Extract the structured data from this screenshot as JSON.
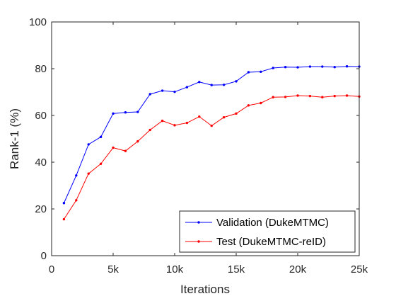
{
  "chart_data": {
    "type": "line",
    "title": "",
    "xlabel": "Iterations",
    "ylabel": "Rank-1 (%)",
    "xlim": [
      0,
      25000
    ],
    "ylim": [
      0,
      100
    ],
    "xticks": [
      0,
      5000,
      10000,
      15000,
      20000,
      25000
    ],
    "xtick_labels": [
      "0",
      "5k",
      "10k",
      "15k",
      "20k",
      "25k"
    ],
    "yticks": [
      0,
      20,
      40,
      60,
      80,
      100
    ],
    "ytick_labels": [
      "0",
      "20",
      "40",
      "60",
      "80",
      "100"
    ],
    "grid": false,
    "legend_position": "bottom-right",
    "x": [
      1000,
      2000,
      3000,
      4000,
      5000,
      6000,
      7000,
      8000,
      9000,
      10000,
      11000,
      12000,
      13000,
      14000,
      15000,
      16000,
      17000,
      18000,
      19000,
      20000,
      21000,
      22000,
      23000,
      24000,
      25000
    ],
    "series": [
      {
        "name": "Validation (DukeMTMC)",
        "color": "#0000ff",
        "values": [
          22.5,
          34.3,
          47.6,
          50.8,
          60.8,
          61.3,
          61.5,
          69.1,
          70.6,
          70.1,
          72.1,
          74.3,
          73.0,
          73.1,
          74.6,
          78.5,
          78.7,
          80.3,
          80.7,
          80.6,
          80.9,
          80.9,
          80.7,
          81.0,
          80.9
        ]
      },
      {
        "name": "Test (DukeMTMC-reID)",
        "color": "#ff0000",
        "values": [
          15.6,
          23.7,
          35.1,
          39.3,
          46.2,
          44.8,
          48.9,
          53.8,
          57.7,
          55.8,
          56.8,
          59.5,
          55.6,
          59.2,
          60.8,
          64.3,
          65.3,
          67.8,
          67.9,
          68.5,
          68.3,
          67.8,
          68.3,
          68.5,
          68.1
        ]
      }
    ]
  }
}
